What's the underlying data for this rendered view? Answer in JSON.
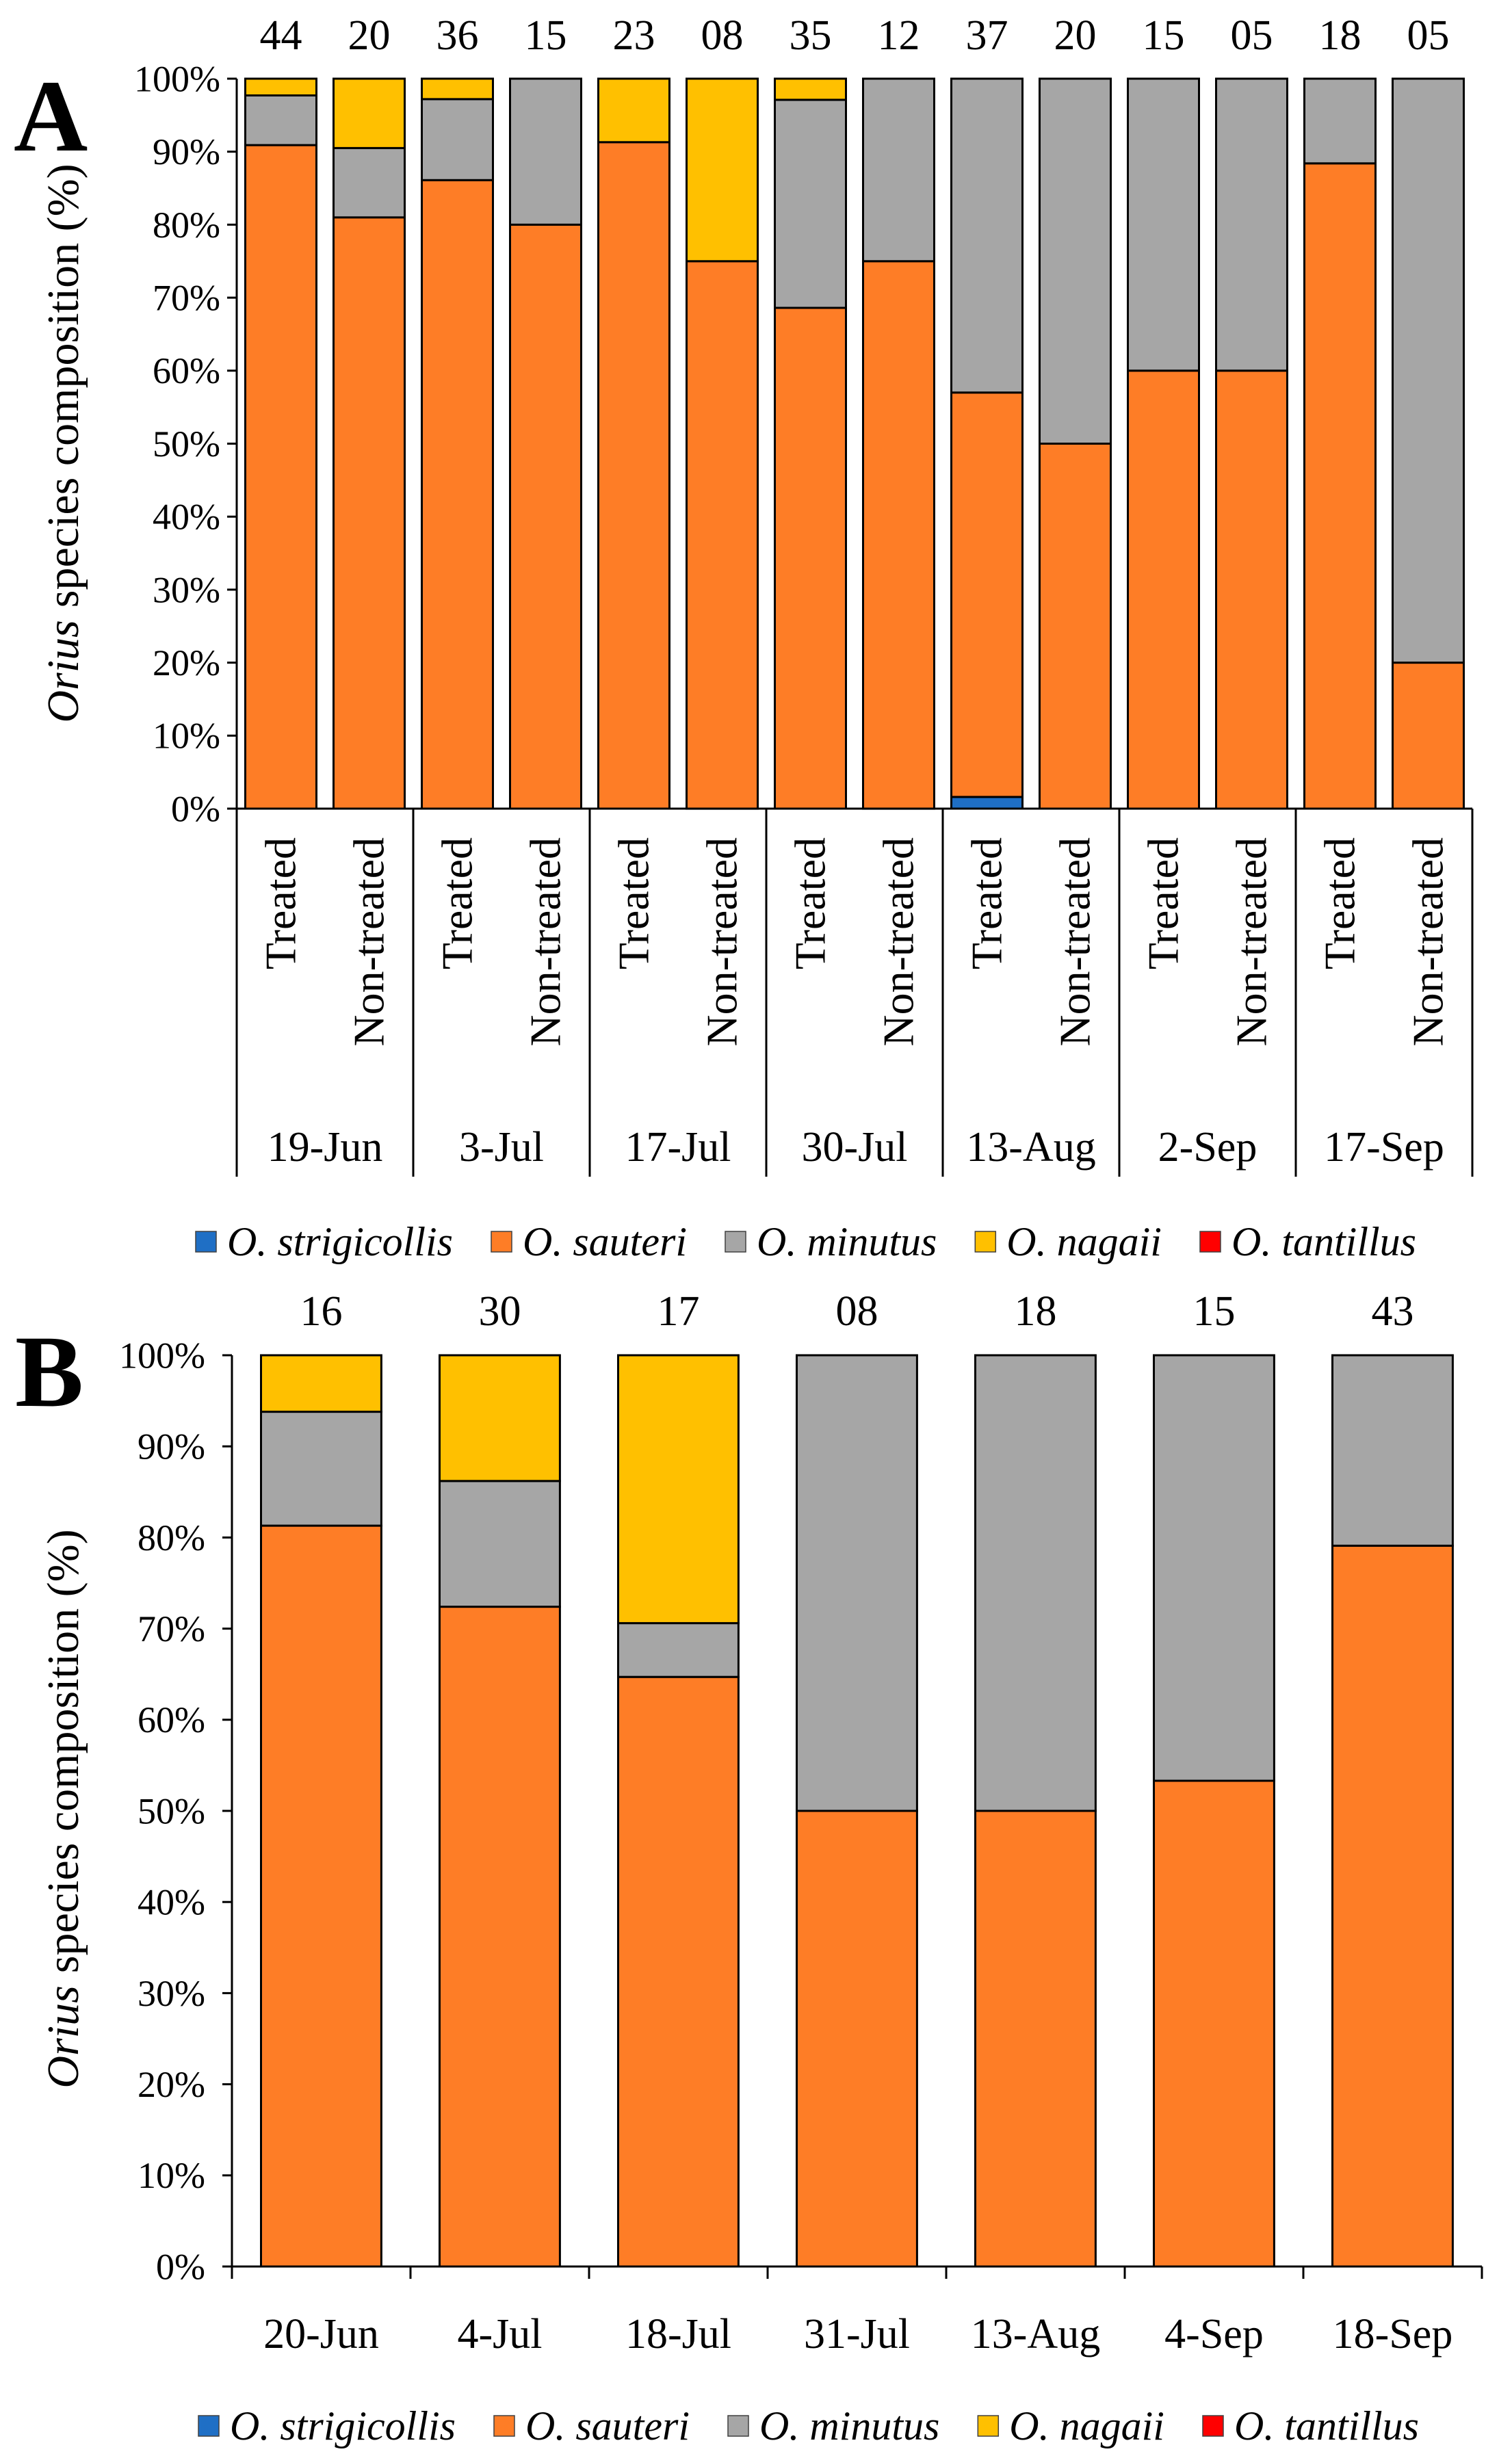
{
  "chart_data": [
    {
      "panel": "A",
      "type": "bar",
      "stacked": true,
      "ylabel": {
        "italic": "Orius",
        "text": "species composition (%)"
      },
      "ylim": [
        0,
        100
      ],
      "yticks": [
        "0%",
        "10%",
        "20%",
        "30%",
        "40%",
        "50%",
        "60%",
        "70%",
        "80%",
        "90%",
        "100%"
      ],
      "groups": [
        "19-Jun",
        "3-Jul",
        "17-Jul",
        "30-Jul",
        "13-Aug",
        "2-Sep",
        "17-Sep"
      ],
      "subcategories": [
        "Treated",
        "Non-treated"
      ],
      "sample_sizes": [
        "44",
        "20",
        "36",
        "15",
        "23",
        "08",
        "35",
        "12",
        "37",
        "20",
        "15",
        "05",
        "18",
        "05"
      ],
      "series": [
        {
          "name": "O. strigicollis",
          "color": "#1f6fc5",
          "values": [
            0,
            0,
            0,
            0,
            0,
            0,
            0,
            0,
            1.6,
            0,
            0,
            0,
            0,
            0
          ]
        },
        {
          "name": "O. sauteri",
          "color": "#fe7d26",
          "values": [
            90.9,
            81.0,
            86.1,
            80.0,
            91.3,
            75.0,
            68.6,
            75.0,
            55.4,
            50.0,
            60.0,
            60.0,
            88.4,
            20.0
          ]
        },
        {
          "name": "O. minutus",
          "color": "#a6a6a6",
          "values": [
            6.8,
            9.5,
            11.1,
            20.0,
            0,
            0,
            28.5,
            25.0,
            43.0,
            50.0,
            40.0,
            40.0,
            11.6,
            80.0
          ]
        },
        {
          "name": "O. nagaii",
          "color": "#ffc000",
          "values": [
            2.3,
            9.5,
            2.8,
            0,
            8.7,
            25.0,
            2.9,
            0,
            0,
            0,
            0,
            0,
            0,
            0
          ]
        },
        {
          "name": "O. tantillus",
          "color": "#ff0000",
          "values": [
            0,
            0,
            0,
            0,
            0,
            0,
            0,
            0,
            0,
            0,
            0,
            0,
            0,
            0
          ]
        }
      ],
      "legend": "bottom"
    },
    {
      "panel": "B",
      "type": "bar",
      "stacked": true,
      "ylabel": {
        "italic": "Orius",
        "text": "species composition (%)"
      },
      "ylim": [
        0,
        100
      ],
      "yticks": [
        "0%",
        "10%",
        "20%",
        "30%",
        "40%",
        "50%",
        "60%",
        "70%",
        "80%",
        "90%",
        "100%"
      ],
      "categories": [
        "20-Jun",
        "4-Jul",
        "18-Jul",
        "31-Jul",
        "13-Aug",
        "4-Sep",
        "18-Sep"
      ],
      "sample_sizes": [
        "16",
        "30",
        "17",
        "08",
        "18",
        "15",
        "43"
      ],
      "series": [
        {
          "name": "O. strigicollis",
          "color": "#1f6fc5",
          "values": [
            0,
            0,
            0,
            0,
            0,
            0,
            0
          ]
        },
        {
          "name": "O. sauteri",
          "color": "#fe7d26",
          "values": [
            81.3,
            72.4,
            64.7,
            50.0,
            50.0,
            53.3,
            79.1
          ]
        },
        {
          "name": "O. minutus",
          "color": "#a6a6a6",
          "values": [
            12.5,
            13.8,
            5.9,
            50.0,
            50.0,
            46.7,
            20.9
          ]
        },
        {
          "name": "O. nagaii",
          "color": "#ffc000",
          "values": [
            6.2,
            13.8,
            29.4,
            0,
            0,
            0,
            0
          ]
        },
        {
          "name": "O. tantillus",
          "color": "#ff0000",
          "values": [
            0,
            0,
            0,
            0,
            0,
            0,
            0
          ]
        }
      ],
      "legend": "bottom"
    }
  ]
}
